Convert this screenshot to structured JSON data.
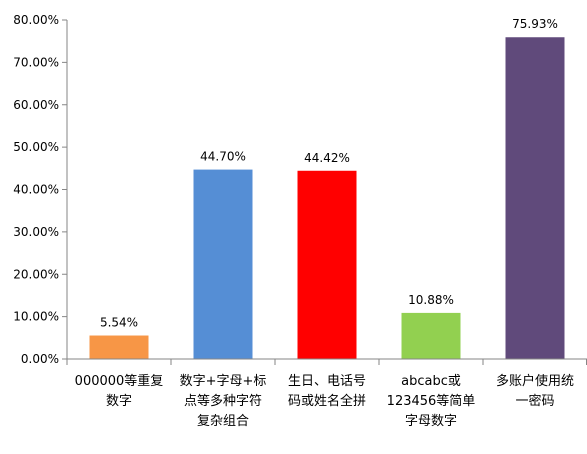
{
  "chart_data": {
    "type": "bar",
    "categories": [
      [
        "000000等重复",
        "数字"
      ],
      [
        "数字+字母+标",
        "点等多种字符",
        "复杂组合"
      ],
      [
        "生日、电话号",
        "码或姓名全拼"
      ],
      [
        "abcabc或",
        "123456等简单",
        "字母数字"
      ],
      [
        "多账户使用统",
        "一密码"
      ]
    ],
    "values": [
      5.54,
      44.7,
      44.42,
      10.88,
      75.93
    ],
    "data_labels": [
      "5.54%",
      "44.70%",
      "44.42%",
      "10.88%",
      "75.93%"
    ],
    "colors": [
      "#F79646",
      "#558ED5",
      "#FF0000",
      "#92D050",
      "#604A7B"
    ],
    "ylim": [
      0,
      80
    ],
    "yticks": [
      0,
      10,
      20,
      30,
      40,
      50,
      60,
      70,
      80
    ],
    "ytick_labels": [
      "0.00%",
      "10.00%",
      "20.00%",
      "30.00%",
      "40.00%",
      "50.00%",
      "60.00%",
      "70.00%",
      "80.00%"
    ],
    "title": "",
    "xlabel": "",
    "ylabel": "",
    "grid": false,
    "legend": "none",
    "axis_color": "#868686"
  }
}
